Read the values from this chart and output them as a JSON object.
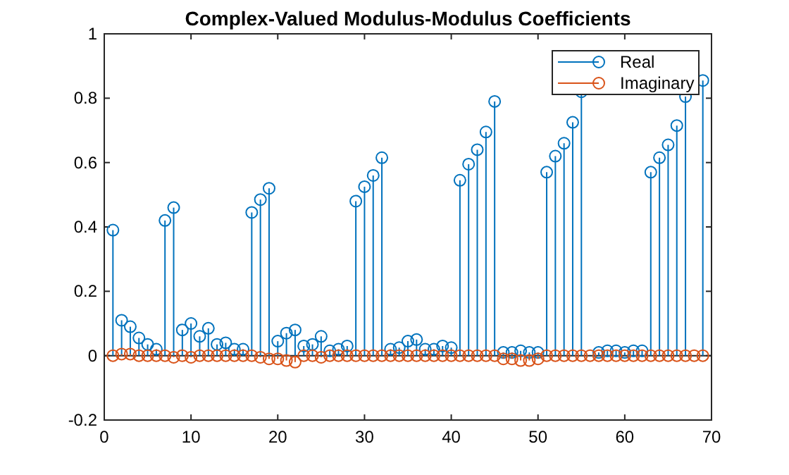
{
  "chart_data": {
    "type": "lollipop",
    "title": "Complex-Valued Modulus-Modulus Coefficients",
    "x": [
      1,
      2,
      3,
      4,
      5,
      6,
      7,
      8,
      9,
      10,
      11,
      12,
      13,
      14,
      15,
      16,
      17,
      18,
      19,
      20,
      21,
      22,
      23,
      24,
      25,
      26,
      27,
      28,
      29,
      30,
      31,
      32,
      33,
      34,
      35,
      36,
      37,
      38,
      39,
      40,
      41,
      42,
      43,
      44,
      45,
      46,
      47,
      48,
      49,
      50,
      51,
      52,
      53,
      54,
      55,
      56,
      57,
      58,
      59,
      60,
      61,
      62,
      63,
      64,
      65,
      66,
      67,
      68,
      69
    ],
    "series": [
      {
        "name": "Real",
        "color": "#0072bd",
        "values": [
          0.39,
          0.11,
          0.09,
          0.055,
          0.035,
          0.02,
          0.42,
          0.46,
          0.08,
          0.1,
          0.06,
          0.085,
          0.035,
          0.04,
          0.02,
          0.02,
          0.445,
          0.485,
          0.52,
          0.045,
          0.07,
          0.08,
          0.03,
          0.035,
          0.06,
          0.015,
          0.02,
          0.03,
          0.48,
          0.525,
          0.56,
          0.615,
          0.02,
          0.025,
          0.045,
          0.05,
          0.02,
          0.02,
          0.03,
          0.025,
          0.545,
          0.595,
          0.64,
          0.695,
          0.79,
          0.01,
          0.01,
          0.015,
          0.01,
          0.01,
          0.57,
          0.62,
          0.66,
          0.725,
          0.82,
          null,
          0.01,
          0.015,
          0.015,
          0.01,
          0.015,
          0.015,
          0.57,
          0.615,
          0.655,
          0.715,
          0.805,
          null,
          0.855
        ]
      },
      {
        "name": "Imaginary",
        "color": "#d95319",
        "values": [
          0,
          0.005,
          0.005,
          0,
          0,
          0,
          0,
          -0.005,
          0,
          -0.005,
          0,
          0,
          0,
          0,
          0,
          0,
          0,
          -0.005,
          -0.01,
          -0.01,
          -0.015,
          -0.02,
          0,
          0,
          -0.005,
          0,
          0,
          0,
          0,
          0,
          0,
          0,
          0,
          0,
          0,
          0,
          0,
          0,
          0,
          0,
          0,
          0,
          0,
          0,
          0,
          -0.01,
          -0.01,
          -0.015,
          -0.015,
          -0.01,
          0,
          0,
          0,
          0,
          0,
          0,
          0,
          0,
          0,
          0,
          0,
          0,
          0,
          0,
          0,
          0,
          0,
          0,
          0
        ]
      }
    ],
    "xlim": [
      0,
      70
    ],
    "xticks": [
      0,
      10,
      20,
      30,
      40,
      50,
      60,
      70
    ],
    "ylim": [
      -0.2,
      1
    ],
    "yticks": [
      -0.2,
      0,
      0.2,
      0.4,
      0.6,
      0.8,
      1
    ],
    "marker": "circle",
    "legend": "top right"
  }
}
